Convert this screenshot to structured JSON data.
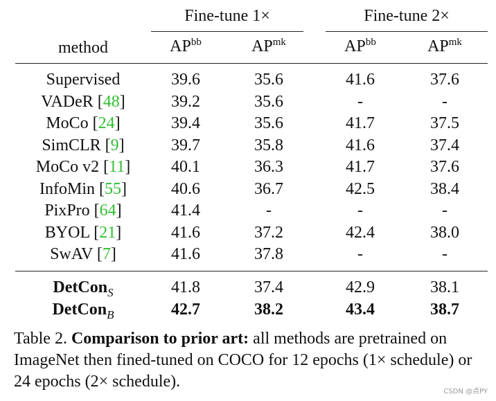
{
  "table": {
    "group_headers": [
      "Fine-tune 1×",
      "Fine-tune 2×"
    ],
    "method_header": "method",
    "metric_base": "AP",
    "metric_sups": [
      "bb",
      "mk",
      "bb",
      "mk"
    ],
    "rows": [
      {
        "name": "Supervised",
        "ref": "",
        "values": [
          "39.6",
          "35.6",
          "41.6",
          "37.6"
        ]
      },
      {
        "name": "VADeR ",
        "ref": "48",
        "values": [
          "39.2",
          "35.6",
          "-",
          "-"
        ]
      },
      {
        "name": "MoCo ",
        "ref": "24",
        "values": [
          "39.4",
          "35.6",
          "41.7",
          "37.5"
        ]
      },
      {
        "name": "SimCLR ",
        "ref": "9",
        "values": [
          "39.7",
          "35.8",
          "41.6",
          "37.4"
        ]
      },
      {
        "name": "MoCo v2 ",
        "ref": "11",
        "values": [
          "40.1",
          "36.3",
          "41.7",
          "37.6"
        ]
      },
      {
        "name": "InfoMin ",
        "ref": "55",
        "values": [
          "40.6",
          "36.7",
          "42.5",
          "38.4"
        ]
      },
      {
        "name": "PixPro ",
        "ref": "64",
        "values": [
          "41.4",
          "-",
          "-",
          "-"
        ]
      },
      {
        "name": "BYOL ",
        "ref": "21",
        "values": [
          "41.6",
          "37.2",
          "42.4",
          "38.0"
        ]
      },
      {
        "name": "SwAV ",
        "ref": "7",
        "values": [
          "41.6",
          "37.8",
          "-",
          "-"
        ]
      }
    ],
    "ours": [
      {
        "name": "DetCon",
        "sub": "S",
        "values": [
          "41.8",
          "37.4",
          "42.9",
          "38.1"
        ],
        "bold_values": false
      },
      {
        "name": "DetCon",
        "sub": "B",
        "values": [
          "42.7",
          "38.2",
          "43.4",
          "38.7"
        ],
        "bold_values": true
      }
    ]
  },
  "caption": {
    "label": "Table 2. ",
    "bold": "Comparison to prior art:",
    "text": " all methods are pretrained on ImageNet then fined-tuned on COCO for 12 epochs (1×  schedule) or 24 epochs (2×  schedule)."
  },
  "watermark": "CSDN @点PY"
}
